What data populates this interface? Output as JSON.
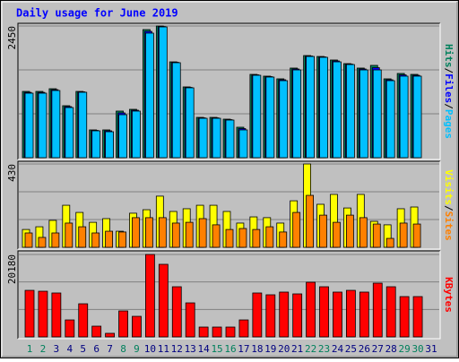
{
  "chart_data": [
    {
      "type": "bar",
      "title": "Daily usage for June 2019",
      "separator": "/",
      "ylim": [
        0,
        2450
      ],
      "yticks": [
        2450
      ],
      "grid_lines": 3,
      "series": [
        {
          "name": "Hits",
          "color": "#00805c",
          "values": [
            1233,
            1233,
            1283,
            967,
            1233,
            517,
            517,
            867,
            900,
            2383,
            2450,
            1783,
            1317,
            750,
            750,
            717,
            567,
            1550,
            1517,
            1467,
            1667,
            1900,
            1883,
            1817,
            1750,
            1667,
            1717,
            1467,
            1567,
            1550,
            null
          ]
        },
        {
          "name": "Files",
          "color": "#0000ff",
          "values": [
            1215,
            1215,
            1265,
            950,
            1225,
            508,
            500,
            833,
            883,
            2350,
            2440,
            1775,
            1308,
            741,
            741,
            708,
            542,
            1541,
            1508,
            1450,
            1650,
            1891,
            1875,
            1800,
            1741,
            1650,
            1675,
            1450,
            1541,
            1533,
            null
          ]
        },
        {
          "name": "Pages",
          "color": "#00c0ff",
          "values": [
            1200,
            1200,
            1250,
            933,
            1217,
            500,
            483,
            800,
            867,
            2317,
            2433,
            1767,
            1300,
            733,
            733,
            700,
            517,
            1533,
            1500,
            1433,
            1633,
            1883,
            1867,
            1783,
            1733,
            1633,
            1633,
            1433,
            1517,
            1517,
            null
          ]
        }
      ]
    },
    {
      "type": "bar",
      "ylim": [
        0,
        430
      ],
      "yticks": [
        430
      ],
      "grid_lines": 3,
      "series": [
        {
          "name": "Visits",
          "color": "#ffff00",
          "values": [
            92,
            106,
            139,
            217,
            180,
            129,
            148,
            83,
            176,
            194,
            264,
            185,
            199,
            217,
            217,
            185,
            125,
            157,
            153,
            125,
            240,
            430,
            222,
            273,
            203,
            273,
            134,
            116,
            199,
            208,
            null
          ]
        },
        {
          "name": "Sites",
          "color": "#ff8000",
          "values": [
            74,
            51,
            74,
            125,
            106,
            74,
            83,
            79,
            153,
            153,
            153,
            125,
            129,
            148,
            116,
            92,
            97,
            92,
            106,
            79,
            180,
            268,
            166,
            129,
            166,
            153,
            120,
            46,
            125,
            120,
            null
          ]
        }
      ]
    },
    {
      "type": "bar",
      "ylim": [
        0,
        20180
      ],
      "yticks": [
        20180
      ],
      "grid_lines": 3,
      "categories": [
        "1",
        "2",
        "3",
        "4",
        "5",
        "6",
        "7",
        "8",
        "9",
        "10",
        "11",
        "12",
        "13",
        "14",
        "15",
        "16",
        "17",
        "18",
        "19",
        "20",
        "21",
        "22",
        "23",
        "24",
        "25",
        "26",
        "27",
        "28",
        "29",
        "30",
        "31"
      ],
      "category_colors": [
        "#00805c",
        "#00805c",
        "#000080",
        "#000080",
        "#000080",
        "#000080",
        "#000080",
        "#00805c",
        "#00805c",
        "#000080",
        "#000080",
        "#000080",
        "#000080",
        "#000080",
        "#00805c",
        "#00805c",
        "#000080",
        "#000080",
        "#000080",
        "#000080",
        "#000080",
        "#00805c",
        "#00805c",
        "#000080",
        "#000080",
        "#000080",
        "#000080",
        "#000080",
        "#00805c",
        "#00805c",
        "#000080"
      ],
      "series": [
        {
          "name": "KBytes",
          "color": "#ff0000",
          "values": [
            11400,
            11180,
            10750,
            4160,
            8110,
            2630,
            880,
            6360,
            5040,
            20180,
            17770,
            12280,
            8330,
            2410,
            2410,
            2410,
            4160,
            10750,
            10310,
            10970,
            10530,
            13380,
            12280,
            10970,
            11400,
            10970,
            13160,
            12280,
            9870,
            9870,
            null
          ]
        }
      ]
    }
  ]
}
